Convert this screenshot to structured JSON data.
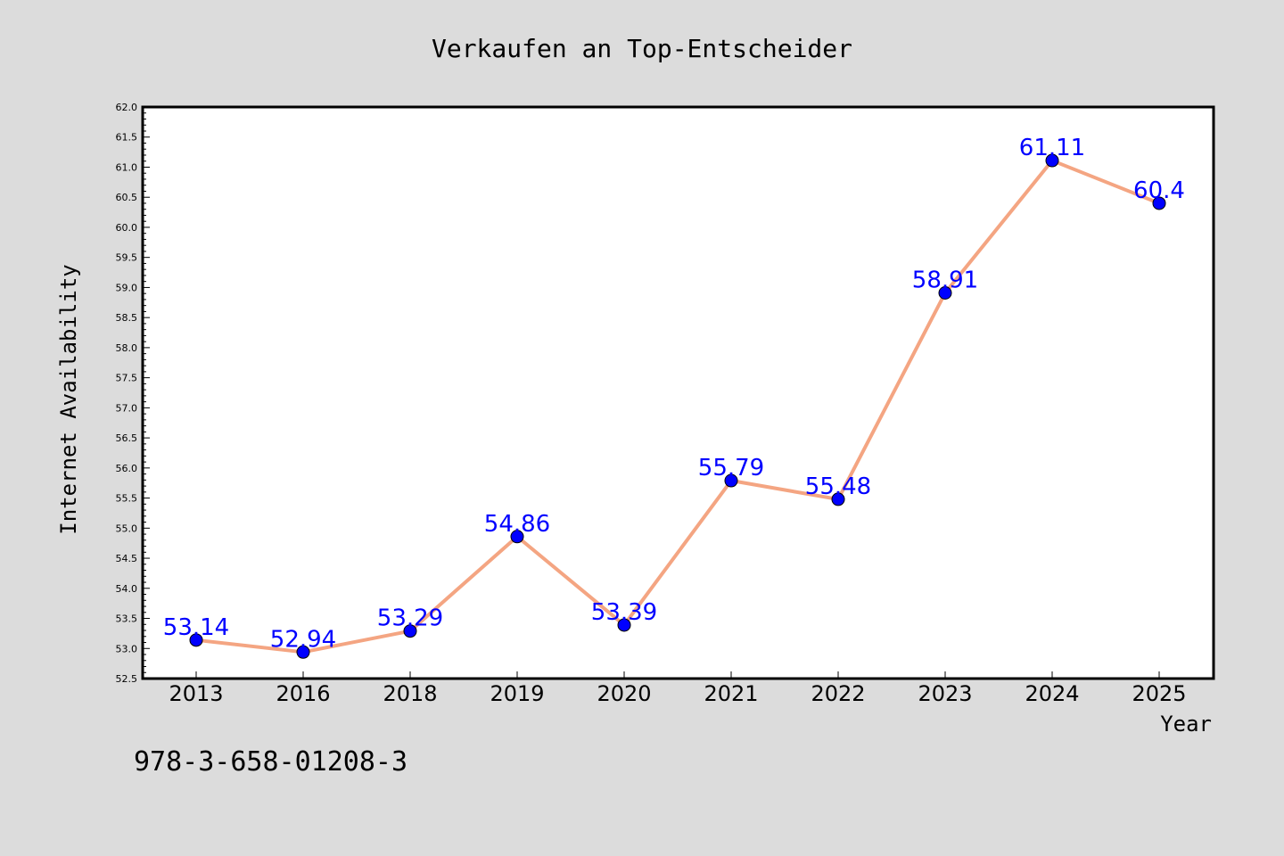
{
  "chart_data": {
    "type": "line",
    "title": "Verkaufen an Top-Entscheider",
    "xlabel": "Year",
    "ylabel": "Internet Availability",
    "categories": [
      "2013",
      "2016",
      "2018",
      "2019",
      "2020",
      "2021",
      "2022",
      "2023",
      "2024",
      "2025"
    ],
    "series": [
      {
        "values": [
          53.14,
          52.94,
          53.29,
          54.86,
          53.39,
          55.79,
          55.48,
          58.91,
          61.11,
          60.4
        ],
        "data_labels": [
          "53.14",
          "52.94",
          "53.29",
          "54.86",
          "53.39",
          "55.79",
          "55.48",
          "58.91",
          "61.11",
          "60.4"
        ]
      }
    ],
    "ylim": [
      52.5,
      62.0
    ],
    "yticks": [
      "52.5",
      "53.0",
      "53.5",
      "54.0",
      "54.5",
      "55.0",
      "55.5",
      "56.0",
      "56.5",
      "57.0",
      "57.5",
      "58.0",
      "58.5",
      "59.0",
      "59.5",
      "60.0",
      "60.5",
      "61.0",
      "61.5",
      "62.0"
    ],
    "grid": false,
    "line_color": "#f4a582",
    "marker_color": "#0000ff",
    "label_color": "#0000ff"
  },
  "footer": {
    "isbn": "978-3-658-01208-3"
  },
  "colors": {
    "background": "#dcdcdc",
    "plot_background": "#ffffff"
  }
}
